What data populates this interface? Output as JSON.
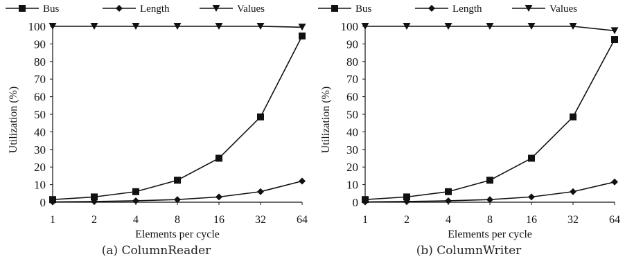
{
  "legend": [
    "Bus",
    "Length",
    "Values"
  ],
  "chart_data": [
    {
      "type": "line",
      "caption": "(a) ColumnReader",
      "xlabel": "Elements per cycle",
      "ylabel": "Utilization (%)",
      "x": [
        1,
        2,
        4,
        8,
        16,
        32,
        64
      ],
      "x_tick_labels": [
        "1",
        "2",
        "4",
        "8",
        "16",
        "32",
        "64"
      ],
      "x_scale": "log2",
      "ylim": [
        0,
        100
      ],
      "y_ticks": [
        0,
        10,
        20,
        30,
        40,
        50,
        60,
        70,
        80,
        90,
        100
      ],
      "grid": false,
      "legend_position": "top",
      "series": [
        {
          "name": "Bus",
          "marker": "square",
          "values": [
            1.5,
            3,
            6,
            12.5,
            25,
            48.5,
            94.5
          ]
        },
        {
          "name": "Length",
          "marker": "diamond",
          "values": [
            0.2,
            0.4,
            0.8,
            1.5,
            3,
            6,
            12
          ]
        },
        {
          "name": "Values",
          "marker": "triangle-down",
          "values": [
            100,
            100,
            100,
            100,
            100,
            100,
            99.5
          ]
        }
      ]
    },
    {
      "type": "line",
      "caption": "(b) ColumnWriter",
      "xlabel": "Elements per cycle",
      "ylabel": "Utilization (%)",
      "x": [
        1,
        2,
        4,
        8,
        16,
        32,
        64
      ],
      "x_tick_labels": [
        "1",
        "2",
        "4",
        "8",
        "16",
        "32",
        "64"
      ],
      "x_scale": "log2",
      "ylim": [
        0,
        100
      ],
      "y_ticks": [
        0,
        10,
        20,
        30,
        40,
        50,
        60,
        70,
        80,
        90,
        100
      ],
      "grid": false,
      "legend_position": "top",
      "series": [
        {
          "name": "Bus",
          "marker": "square",
          "values": [
            1.5,
            3,
            6,
            12.5,
            25,
            48.5,
            92.5
          ]
        },
        {
          "name": "Length",
          "marker": "diamond",
          "values": [
            0.2,
            0.4,
            0.8,
            1.5,
            3,
            6,
            11.5
          ]
        },
        {
          "name": "Values",
          "marker": "triangle-down",
          "values": [
            100,
            100,
            100,
            100,
            100,
            100,
            97.5
          ]
        }
      ]
    }
  ]
}
